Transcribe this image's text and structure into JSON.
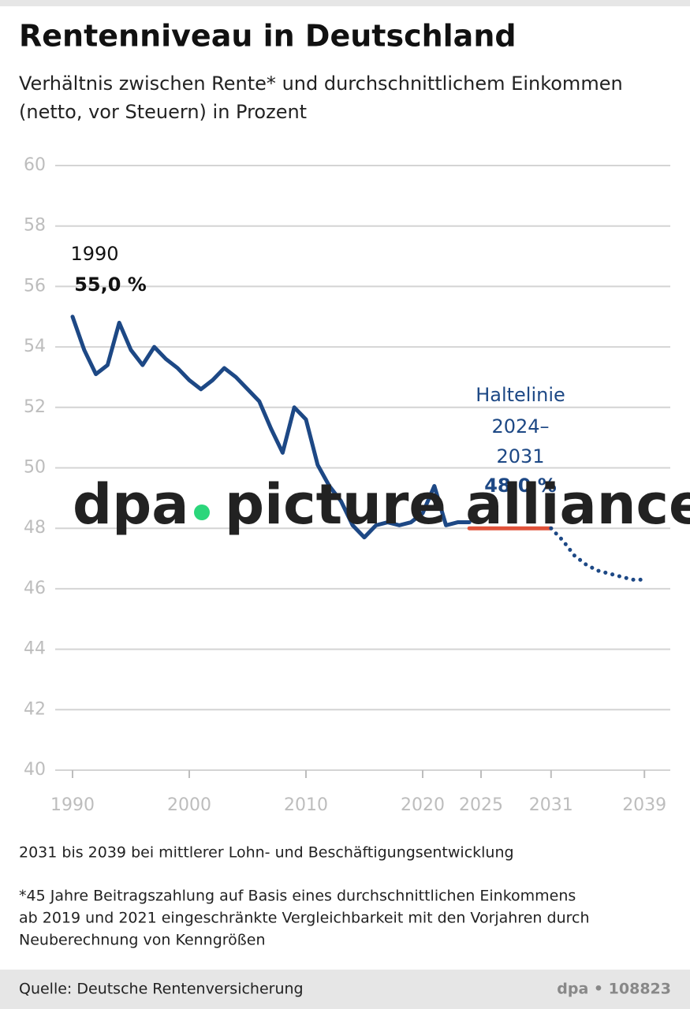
{
  "chart_data": {
    "type": "line",
    "title": "Rentenniveau in Deutschland",
    "subtitle": [
      "Verhältnis zwischen Rente* und durchschnittlichem Einkommen",
      "(netto, vor Steuern) in Prozent"
    ],
    "annotations": {
      "start_year": "1990",
      "start_value": "55,0 %",
      "hold": [
        "Haltelinie",
        "2024–",
        "2031"
      ],
      "hold_value": "48,0 %"
    },
    "watermark": [
      "dpa",
      "picture alliance"
    ],
    "x": [
      1990,
      1991,
      1992,
      1993,
      1994,
      1995,
      1996,
      1997,
      1998,
      1999,
      2000,
      2001,
      2002,
      2003,
      2004,
      2005,
      2006,
      2007,
      2008,
      2009,
      2010,
      2011,
      2012,
      2013,
      2014,
      2015,
      2016,
      2017,
      2018,
      2019,
      2020,
      2021,
      2022,
      2023,
      2024,
      2025,
      2026,
      2027,
      2028,
      2029,
      2030,
      2031,
      2032,
      2033,
      2034,
      2035,
      2036,
      2037,
      2038,
      2039
    ],
    "series": [
      {
        "color": "#1d4885",
        "style": "solid",
        "values": [
          55.0,
          53.9,
          53.1,
          53.4,
          54.8,
          53.9,
          53.4,
          54.0,
          53.6,
          53.3,
          52.9,
          52.6,
          52.9,
          53.3,
          53.0,
          52.6,
          52.2,
          51.3,
          50.5,
          52.0,
          51.6,
          50.1,
          49.4,
          48.9,
          48.1,
          47.7,
          48.1,
          48.2,
          48.1,
          48.2,
          48.5,
          49.4,
          48.1,
          48.2,
          48.2,
          null,
          null,
          null,
          null,
          null,
          null,
          null,
          null,
          null,
          null,
          null,
          null,
          null,
          null,
          null
        ]
      },
      {
        "color": "#e0523a",
        "style": "solid",
        "values": [
          null,
          null,
          null,
          null,
          null,
          null,
          null,
          null,
          null,
          null,
          null,
          null,
          null,
          null,
          null,
          null,
          null,
          null,
          null,
          null,
          null,
          null,
          null,
          null,
          null,
          null,
          null,
          null,
          null,
          null,
          null,
          null,
          null,
          null,
          48.0,
          48.0,
          48.0,
          48.0,
          48.0,
          48.0,
          48.0,
          48.0,
          null,
          null,
          null,
          null,
          null,
          null,
          null,
          null
        ]
      },
      {
        "color": "#1d4885",
        "style": "dotted",
        "values": [
          null,
          null,
          null,
          null,
          null,
          null,
          null,
          null,
          null,
          null,
          null,
          null,
          null,
          null,
          null,
          null,
          null,
          null,
          null,
          null,
          null,
          null,
          null,
          null,
          null,
          null,
          null,
          null,
          null,
          null,
          null,
          null,
          null,
          null,
          null,
          null,
          null,
          null,
          null,
          null,
          null,
          48.0,
          47.6,
          47.1,
          46.8,
          46.6,
          46.5,
          46.4,
          46.3,
          46.3
        ]
      }
    ],
    "xlim": [
      1989,
      2041
    ],
    "xticks": [
      1990,
      2000,
      2010,
      2020,
      2025,
      2031,
      2039
    ],
    "ylim": [
      40,
      60
    ],
    "yticks": [
      40,
      42,
      44,
      46,
      48,
      50,
      52,
      54,
      56,
      58,
      60
    ],
    "grid": true,
    "notes": [
      "2031 bis 2039 bei mittlerer Lohn- und Beschäftigungsentwicklung",
      "*45 Jahre Beitragszahlung auf Basis eines durchschnittlichen Einkommens",
      "ab 2019 und 2021 eingeschränkte Vergleichbarkeit mit den Vorjahren durch",
      "Neuberechnung von Kenngrößen"
    ],
    "source": "Quelle: Deutsche Rentenversicherung",
    "credit": "dpa • 108823"
  }
}
